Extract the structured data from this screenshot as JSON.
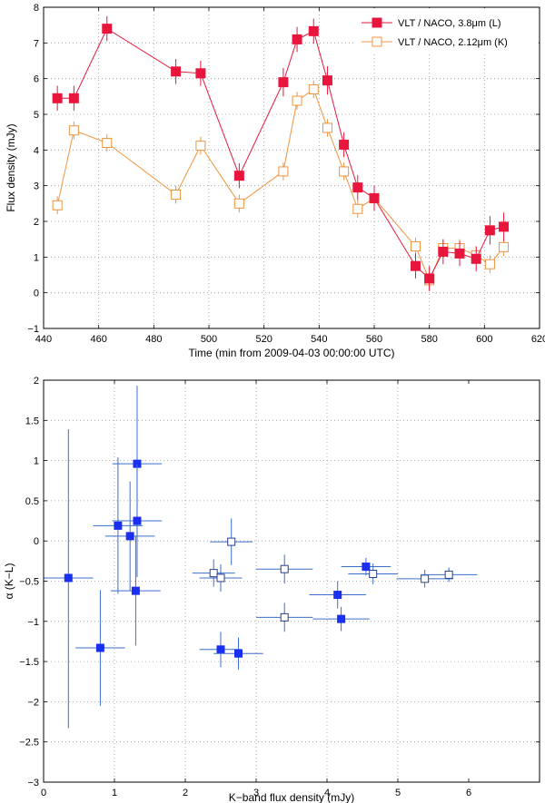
{
  "chart_data": [
    {
      "type": "line",
      "xlabel": "Time (min from 2009-04-03 00:00:00 UTC)",
      "ylabel": "Flux density (mJy)",
      "xlim": [
        440,
        620
      ],
      "ylim": [
        -1,
        8
      ],
      "xticks": [
        440,
        460,
        480,
        500,
        520,
        540,
        560,
        580,
        600,
        620
      ],
      "yticks": [
        -1,
        0,
        1,
        2,
        3,
        4,
        5,
        6,
        7,
        8
      ],
      "grid": true,
      "legend_position": "top-right",
      "series": [
        {
          "name": "VLT / NACO, 3.8μm (L)",
          "color": "#e8163c",
          "marker": "filled-square",
          "x": [
            445,
            451,
            463,
            488,
            497,
            511,
            527,
            532,
            538,
            543,
            549,
            554,
            560,
            575,
            580,
            585,
            591,
            597,
            602,
            607
          ],
          "y": [
            5.45,
            5.45,
            7.4,
            6.2,
            6.15,
            3.28,
            5.9,
            7.1,
            7.33,
            5.95,
            4.15,
            2.95,
            2.65,
            0.75,
            0.4,
            1.15,
            1.1,
            0.95,
            1.75,
            1.85
          ],
          "err": [
            0.35,
            0.35,
            0.35,
            0.35,
            0.35,
            0.35,
            0.4,
            0.35,
            0.35,
            0.4,
            0.35,
            0.35,
            0.35,
            0.35,
            0.35,
            0.35,
            0.35,
            0.35,
            0.4,
            0.4
          ]
        },
        {
          "name": "VLT / NACO, 2.12μm (K)",
          "color": "#f0943e",
          "marker": "open-square",
          "x": [
            445,
            451,
            463,
            488,
            497,
            511,
            527,
            532,
            538,
            543,
            549,
            554,
            560,
            575,
            580,
            585,
            591,
            597,
            602,
            607
          ],
          "y": [
            2.45,
            4.55,
            4.2,
            2.75,
            4.12,
            2.5,
            3.4,
            5.38,
            5.7,
            4.62,
            3.4,
            2.35,
            2.65,
            1.3,
            0.35,
            1.25,
            1.25,
            1.05,
            0.8,
            1.28
          ],
          "err": [
            0.25,
            0.25,
            0.25,
            0.25,
            0.25,
            0.25,
            0.25,
            0.25,
            0.25,
            0.25,
            0.25,
            0.25,
            0.25,
            0.25,
            0.25,
            0.25,
            0.25,
            0.25,
            0.25,
            0.25
          ]
        }
      ]
    },
    {
      "type": "scatter",
      "xlabel": "K−band flux density (mJy)",
      "ylabel": "α (K−L)",
      "xlim": [
        0,
        7
      ],
      "ylim": [
        -3,
        2
      ],
      "xticks": [
        0,
        1,
        2,
        3,
        4,
        5,
        6
      ],
      "yticks": [
        -3,
        -2.5,
        -2,
        -1.5,
        -1,
        -0.5,
        0,
        0.5,
        1,
        1.5,
        2
      ],
      "grid": true,
      "color": "#1a2ff0",
      "errcolor": "#3a6fcc",
      "points": [
        {
          "x": 0.35,
          "y": -0.46,
          "xerr": 0.35,
          "yerr": [
            1.87,
            1.85
          ],
          "filled": true
        },
        {
          "x": 0.8,
          "y": -1.33,
          "xerr": 0.35,
          "yerr": [
            0.72,
            0.72
          ],
          "filled": true
        },
        {
          "x": 1.05,
          "y": 0.19,
          "xerr": 0.35,
          "yerr": [
            0.85,
            0.85
          ],
          "filled": true
        },
        {
          "x": 1.22,
          "y": 0.06,
          "xerr": 0.35,
          "yerr": [
            0.68,
            0.68
          ],
          "filled": true
        },
        {
          "x": 1.3,
          "y": -0.62,
          "xerr": 0.35,
          "yerr": [
            0.68,
            0.68
          ],
          "filled": true
        },
        {
          "x": 1.32,
          "y": 0.96,
          "xerr": 0.35,
          "yerr": [
            0.97,
            0.97
          ],
          "filled": true
        },
        {
          "x": 1.32,
          "y": 0.25,
          "xerr": 0.35,
          "yerr": [
            0.7,
            0.7
          ],
          "filled": true
        },
        {
          "x": 2.4,
          "y": -0.4,
          "xerr": 0.3,
          "yerr": [
            0.17,
            0.17
          ],
          "filled": false
        },
        {
          "x": 2.5,
          "y": -1.35,
          "xerr": 0.3,
          "yerr": [
            0.22,
            0.22
          ],
          "filled": true
        },
        {
          "x": 2.5,
          "y": -0.46,
          "xerr": 0.3,
          "yerr": [
            0.17,
            0.17
          ],
          "filled": false
        },
        {
          "x": 2.65,
          "y": -0.01,
          "xerr": 0.3,
          "yerr": [
            0.29,
            0.29
          ],
          "filled": false
        },
        {
          "x": 2.75,
          "y": -1.4,
          "xerr": 0.35,
          "yerr": [
            0.2,
            0.2
          ],
          "filled": true
        },
        {
          "x": 3.4,
          "y": -0.35,
          "xerr": 0.4,
          "yerr": [
            0.18,
            0.18
          ],
          "filled": false
        },
        {
          "x": 3.4,
          "y": -0.95,
          "xerr": 0.4,
          "yerr": [
            0.18,
            0.18
          ],
          "filled": false
        },
        {
          "x": 4.15,
          "y": -0.67,
          "xerr": 0.4,
          "yerr": [
            0.17,
            0.17
          ],
          "filled": true
        },
        {
          "x": 4.2,
          "y": -0.97,
          "xerr": 0.4,
          "yerr": [
            0.15,
            0.15
          ],
          "filled": true
        },
        {
          "x": 4.55,
          "y": -0.32,
          "xerr": 0.35,
          "yerr": [
            0.11,
            0.11
          ],
          "filled": true
        },
        {
          "x": 4.65,
          "y": -0.41,
          "xerr": 0.35,
          "yerr": [
            0.13,
            0.13
          ],
          "filled": false
        },
        {
          "x": 5.38,
          "y": -0.47,
          "xerr": 0.4,
          "yerr": [
            0.11,
            0.11
          ],
          "filled": false
        },
        {
          "x": 5.72,
          "y": -0.42,
          "xerr": 0.4,
          "yerr": [
            0.09,
            0.09
          ],
          "filled": false
        }
      ]
    }
  ]
}
